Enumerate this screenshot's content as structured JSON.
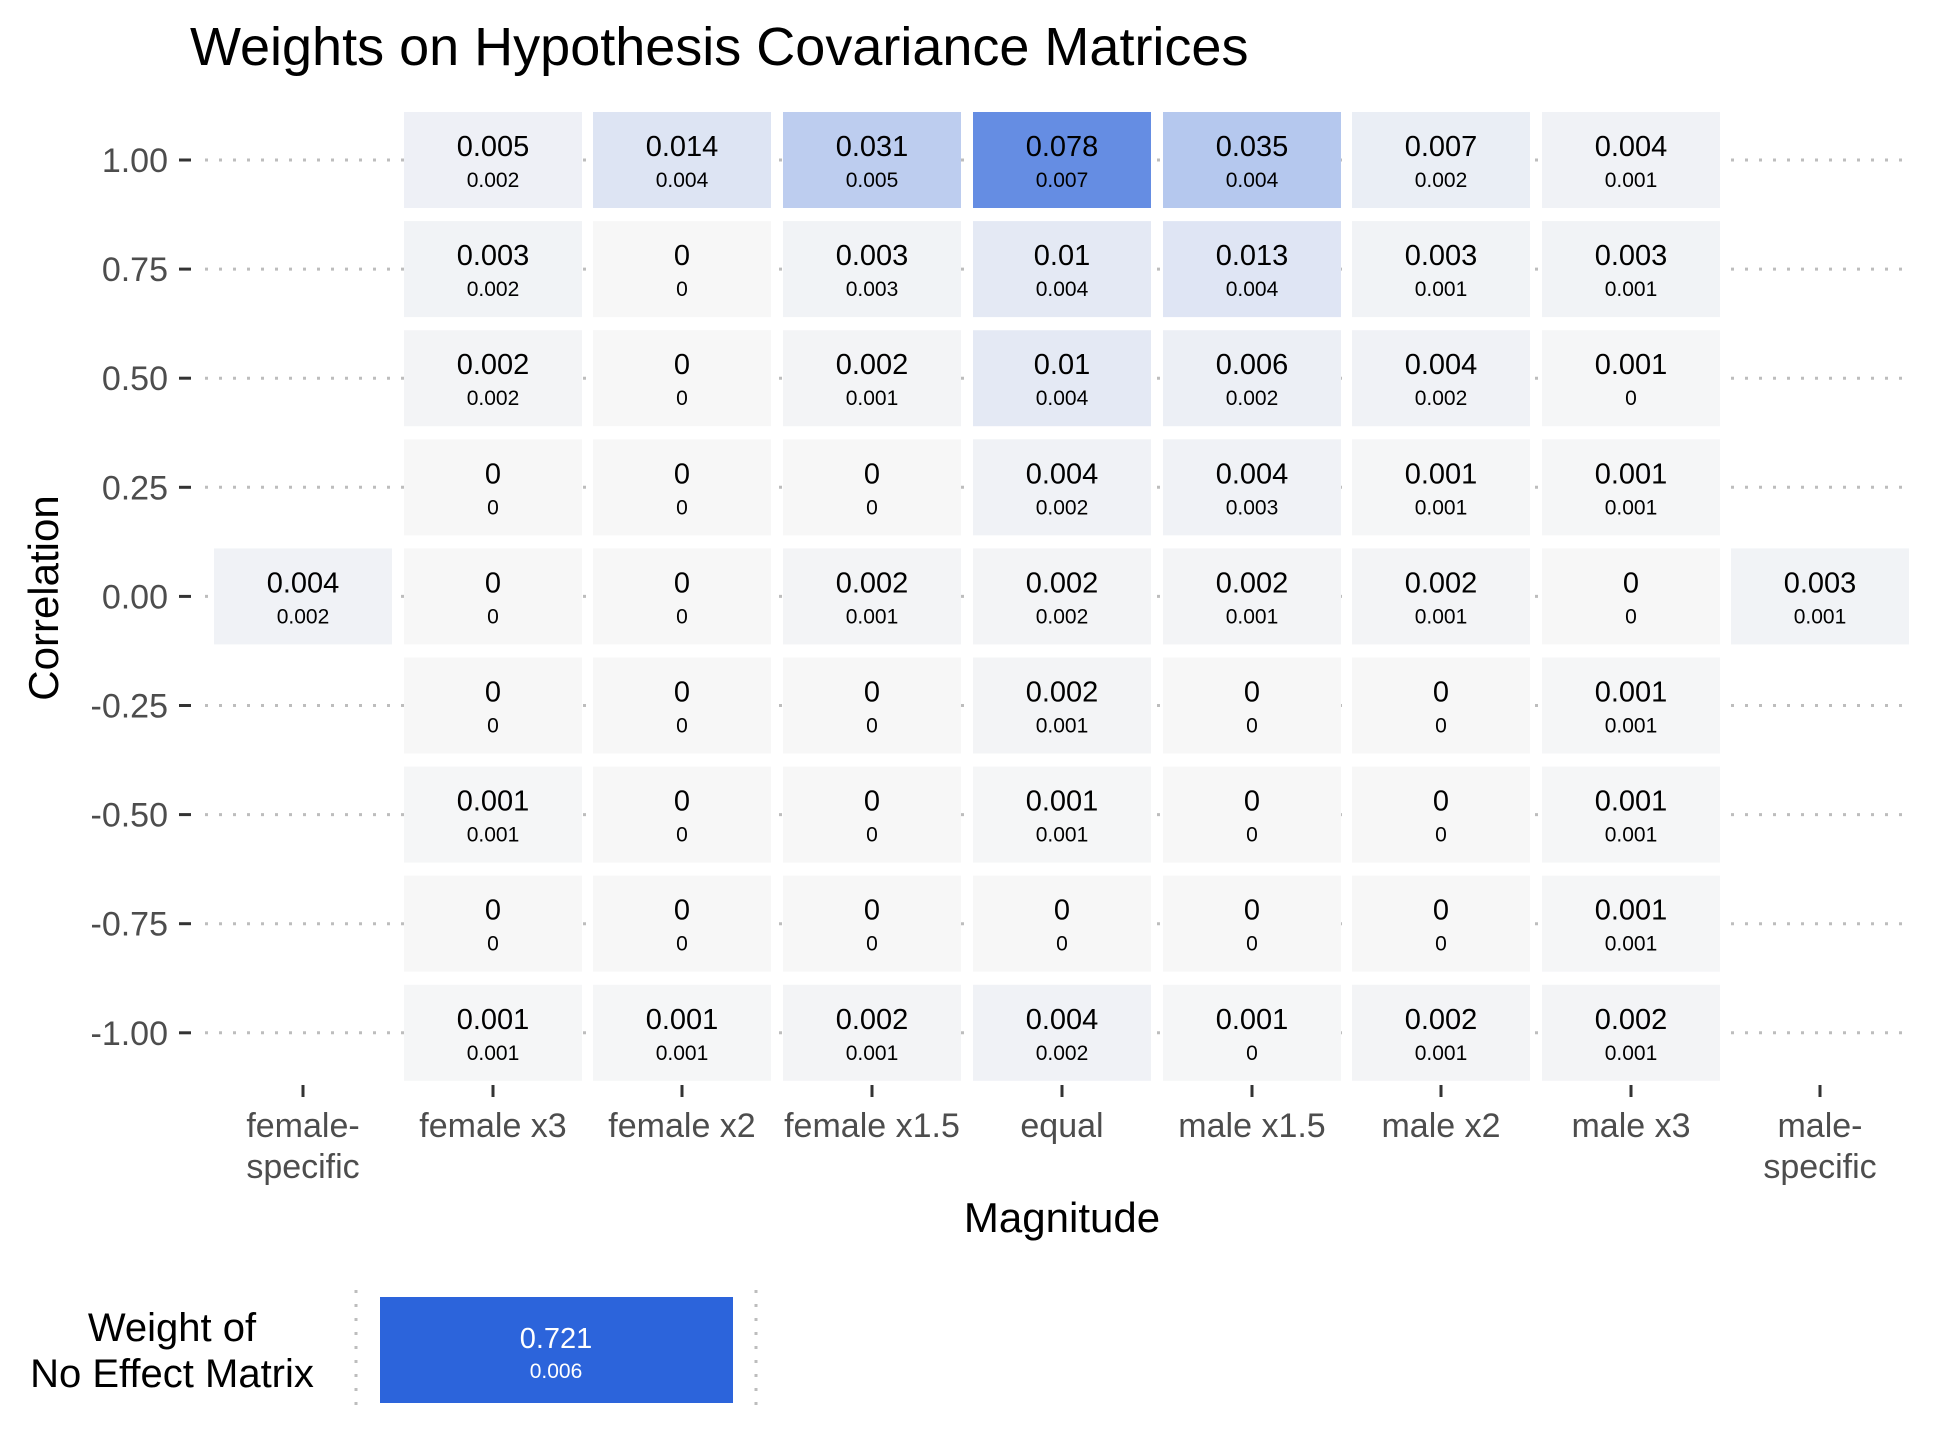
{
  "chart_data": [
    {
      "type": "heatmap",
      "title": "Weights on Hypothesis Covariance Matrices",
      "xlabel": "Magnitude",
      "ylabel": "Correlation",
      "x_categories": [
        "female-\nspecific",
        "female x3",
        "female x2",
        "female x1.5",
        "equal",
        "male x1.5",
        "male x2",
        "male x3",
        "male-\nspecific"
      ],
      "y_categories": [
        "1.00",
        "0.75",
        "0.50",
        "0.25",
        "0.00",
        "-0.25",
        "-0.50",
        "-0.75",
        "-1.00"
      ],
      "y_values": [
        1.0,
        0.75,
        0.5,
        0.25,
        0.0,
        -0.25,
        -0.5,
        -0.75,
        -1.0
      ],
      "grid": "dotted horizontal lines at each correlation level",
      "colors": {
        "low": "#f7f7f7",
        "high": "#2c64db",
        "grid": "#bdbdbd",
        "text": "#000000",
        "axis_text": "#4d4d4d"
      },
      "cells": [
        {
          "x": "female x3",
          "y": 1.0,
          "label": "0.005",
          "sublabel": "0.002",
          "value": 0.005
        },
        {
          "x": "female x2",
          "y": 1.0,
          "label": "0.014",
          "sublabel": "0.004",
          "value": 0.014
        },
        {
          "x": "female x1.5",
          "y": 1.0,
          "label": "0.031",
          "sublabel": "0.005",
          "value": 0.031
        },
        {
          "x": "equal",
          "y": 1.0,
          "label": "0.078",
          "sublabel": "0.007",
          "value": 0.078
        },
        {
          "x": "male x1.5",
          "y": 1.0,
          "label": "0.035",
          "sublabel": "0.004",
          "value": 0.035
        },
        {
          "x": "male x2",
          "y": 1.0,
          "label": "0.007",
          "sublabel": "0.002",
          "value": 0.007
        },
        {
          "x": "male x3",
          "y": 1.0,
          "label": "0.004",
          "sublabel": "0.001",
          "value": 0.004
        },
        {
          "x": "female x3",
          "y": 0.75,
          "label": "0.003",
          "sublabel": "0.002",
          "value": 0.003
        },
        {
          "x": "female x2",
          "y": 0.75,
          "label": "0",
          "sublabel": "0",
          "value": 0
        },
        {
          "x": "female x1.5",
          "y": 0.75,
          "label": "0.003",
          "sublabel": "0.003",
          "value": 0.003
        },
        {
          "x": "equal",
          "y": 0.75,
          "label": "0.01",
          "sublabel": "0.004",
          "value": 0.01
        },
        {
          "x": "male x1.5",
          "y": 0.75,
          "label": "0.013",
          "sublabel": "0.004",
          "value": 0.013
        },
        {
          "x": "male x2",
          "y": 0.75,
          "label": "0.003",
          "sublabel": "0.001",
          "value": 0.003
        },
        {
          "x": "male x3",
          "y": 0.75,
          "label": "0.003",
          "sublabel": "0.001",
          "value": 0.003
        },
        {
          "x": "female x3",
          "y": 0.5,
          "label": "0.002",
          "sublabel": "0.002",
          "value": 0.002
        },
        {
          "x": "female x2",
          "y": 0.5,
          "label": "0",
          "sublabel": "0",
          "value": 0
        },
        {
          "x": "female x1.5",
          "y": 0.5,
          "label": "0.002",
          "sublabel": "0.001",
          "value": 0.002
        },
        {
          "x": "equal",
          "y": 0.5,
          "label": "0.01",
          "sublabel": "0.004",
          "value": 0.01
        },
        {
          "x": "male x1.5",
          "y": 0.5,
          "label": "0.006",
          "sublabel": "0.002",
          "value": 0.006
        },
        {
          "x": "male x2",
          "y": 0.5,
          "label": "0.004",
          "sublabel": "0.002",
          "value": 0.004
        },
        {
          "x": "male x3",
          "y": 0.5,
          "label": "0.001",
          "sublabel": "0",
          "value": 0.001
        },
        {
          "x": "female x3",
          "y": 0.25,
          "label": "0",
          "sublabel": "0",
          "value": 0
        },
        {
          "x": "female x2",
          "y": 0.25,
          "label": "0",
          "sublabel": "0",
          "value": 0
        },
        {
          "x": "female x1.5",
          "y": 0.25,
          "label": "0",
          "sublabel": "0",
          "value": 0
        },
        {
          "x": "equal",
          "y": 0.25,
          "label": "0.004",
          "sublabel": "0.002",
          "value": 0.004
        },
        {
          "x": "male x1.5",
          "y": 0.25,
          "label": "0.004",
          "sublabel": "0.003",
          "value": 0.004
        },
        {
          "x": "male x2",
          "y": 0.25,
          "label": "0.001",
          "sublabel": "0.001",
          "value": 0.001
        },
        {
          "x": "male x3",
          "y": 0.25,
          "label": "0.001",
          "sublabel": "0.001",
          "value": 0.001
        },
        {
          "x": "female-\nspecific",
          "y": 0.0,
          "label": "0.004",
          "sublabel": "0.002",
          "value": 0.004
        },
        {
          "x": "female x3",
          "y": 0.0,
          "label": "0",
          "sublabel": "0",
          "value": 0
        },
        {
          "x": "female x2",
          "y": 0.0,
          "label": "0",
          "sublabel": "0",
          "value": 0
        },
        {
          "x": "female x1.5",
          "y": 0.0,
          "label": "0.002",
          "sublabel": "0.001",
          "value": 0.002
        },
        {
          "x": "equal",
          "y": 0.0,
          "label": "0.002",
          "sublabel": "0.002",
          "value": 0.002
        },
        {
          "x": "male x1.5",
          "y": 0.0,
          "label": "0.002",
          "sublabel": "0.001",
          "value": 0.002
        },
        {
          "x": "male x2",
          "y": 0.0,
          "label": "0.002",
          "sublabel": "0.001",
          "value": 0.002
        },
        {
          "x": "male x3",
          "y": 0.0,
          "label": "0",
          "sublabel": "0",
          "value": 0
        },
        {
          "x": "male-\nspecific",
          "y": 0.0,
          "label": "0.003",
          "sublabel": "0.001",
          "value": 0.003
        },
        {
          "x": "female x3",
          "y": -0.25,
          "label": "0",
          "sublabel": "0",
          "value": 0
        },
        {
          "x": "female x2",
          "y": -0.25,
          "label": "0",
          "sublabel": "0",
          "value": 0
        },
        {
          "x": "female x1.5",
          "y": -0.25,
          "label": "0",
          "sublabel": "0",
          "value": 0
        },
        {
          "x": "equal",
          "y": -0.25,
          "label": "0.002",
          "sublabel": "0.001",
          "value": 0.002
        },
        {
          "x": "male x1.5",
          "y": -0.25,
          "label": "0",
          "sublabel": "0",
          "value": 0
        },
        {
          "x": "male x2",
          "y": -0.25,
          "label": "0",
          "sublabel": "0",
          "value": 0
        },
        {
          "x": "male x3",
          "y": -0.25,
          "label": "0.001",
          "sublabel": "0.001",
          "value": 0.001
        },
        {
          "x": "female x3",
          "y": -0.5,
          "label": "0.001",
          "sublabel": "0.001",
          "value": 0.001
        },
        {
          "x": "female x2",
          "y": -0.5,
          "label": "0",
          "sublabel": "0",
          "value": 0
        },
        {
          "x": "female x1.5",
          "y": -0.5,
          "label": "0",
          "sublabel": "0",
          "value": 0
        },
        {
          "x": "equal",
          "y": -0.5,
          "label": "0.001",
          "sublabel": "0.001",
          "value": 0.001
        },
        {
          "x": "male x1.5",
          "y": -0.5,
          "label": "0",
          "sublabel": "0",
          "value": 0
        },
        {
          "x": "male x2",
          "y": -0.5,
          "label": "0",
          "sublabel": "0",
          "value": 0
        },
        {
          "x": "male x3",
          "y": -0.5,
          "label": "0.001",
          "sublabel": "0.001",
          "value": 0.001
        },
        {
          "x": "female x3",
          "y": -0.75,
          "label": "0",
          "sublabel": "0",
          "value": 0
        },
        {
          "x": "female x2",
          "y": -0.75,
          "label": "0",
          "sublabel": "0",
          "value": 0
        },
        {
          "x": "female x1.5",
          "y": -0.75,
          "label": "0",
          "sublabel": "0",
          "value": 0
        },
        {
          "x": "equal",
          "y": -0.75,
          "label": "0",
          "sublabel": "0",
          "value": 0
        },
        {
          "x": "male x1.5",
          "y": -0.75,
          "label": "0",
          "sublabel": "0",
          "value": 0
        },
        {
          "x": "male x2",
          "y": -0.75,
          "label": "0",
          "sublabel": "0",
          "value": 0
        },
        {
          "x": "male x3",
          "y": -0.75,
          "label": "0.001",
          "sublabel": "0.001",
          "value": 0.001
        },
        {
          "x": "female x3",
          "y": -1.0,
          "label": "0.001",
          "sublabel": "0.001",
          "value": 0.001
        },
        {
          "x": "female x2",
          "y": -1.0,
          "label": "0.001",
          "sublabel": "0.001",
          "value": 0.001
        },
        {
          "x": "female x1.5",
          "y": -1.0,
          "label": "0.002",
          "sublabel": "0.001",
          "value": 0.002
        },
        {
          "x": "equal",
          "y": -1.0,
          "label": "0.004",
          "sublabel": "0.002",
          "value": 0.004
        },
        {
          "x": "male x1.5",
          "y": -1.0,
          "label": "0.001",
          "sublabel": "0",
          "value": 0.001
        },
        {
          "x": "male x2",
          "y": -1.0,
          "label": "0.002",
          "sublabel": "0.001",
          "value": 0.002
        },
        {
          "x": "male x3",
          "y": -1.0,
          "label": "0.002",
          "sublabel": "0.001",
          "value": 0.002
        }
      ]
    },
    {
      "type": "heatmap",
      "ylabel": "Weight of\nNo Effect Matrix",
      "cells": [
        {
          "label": "0.721",
          "sublabel": "0.006",
          "value": 0.721
        }
      ],
      "colors": {
        "fill": "#2c64db",
        "text": "#ffffff"
      }
    }
  ]
}
